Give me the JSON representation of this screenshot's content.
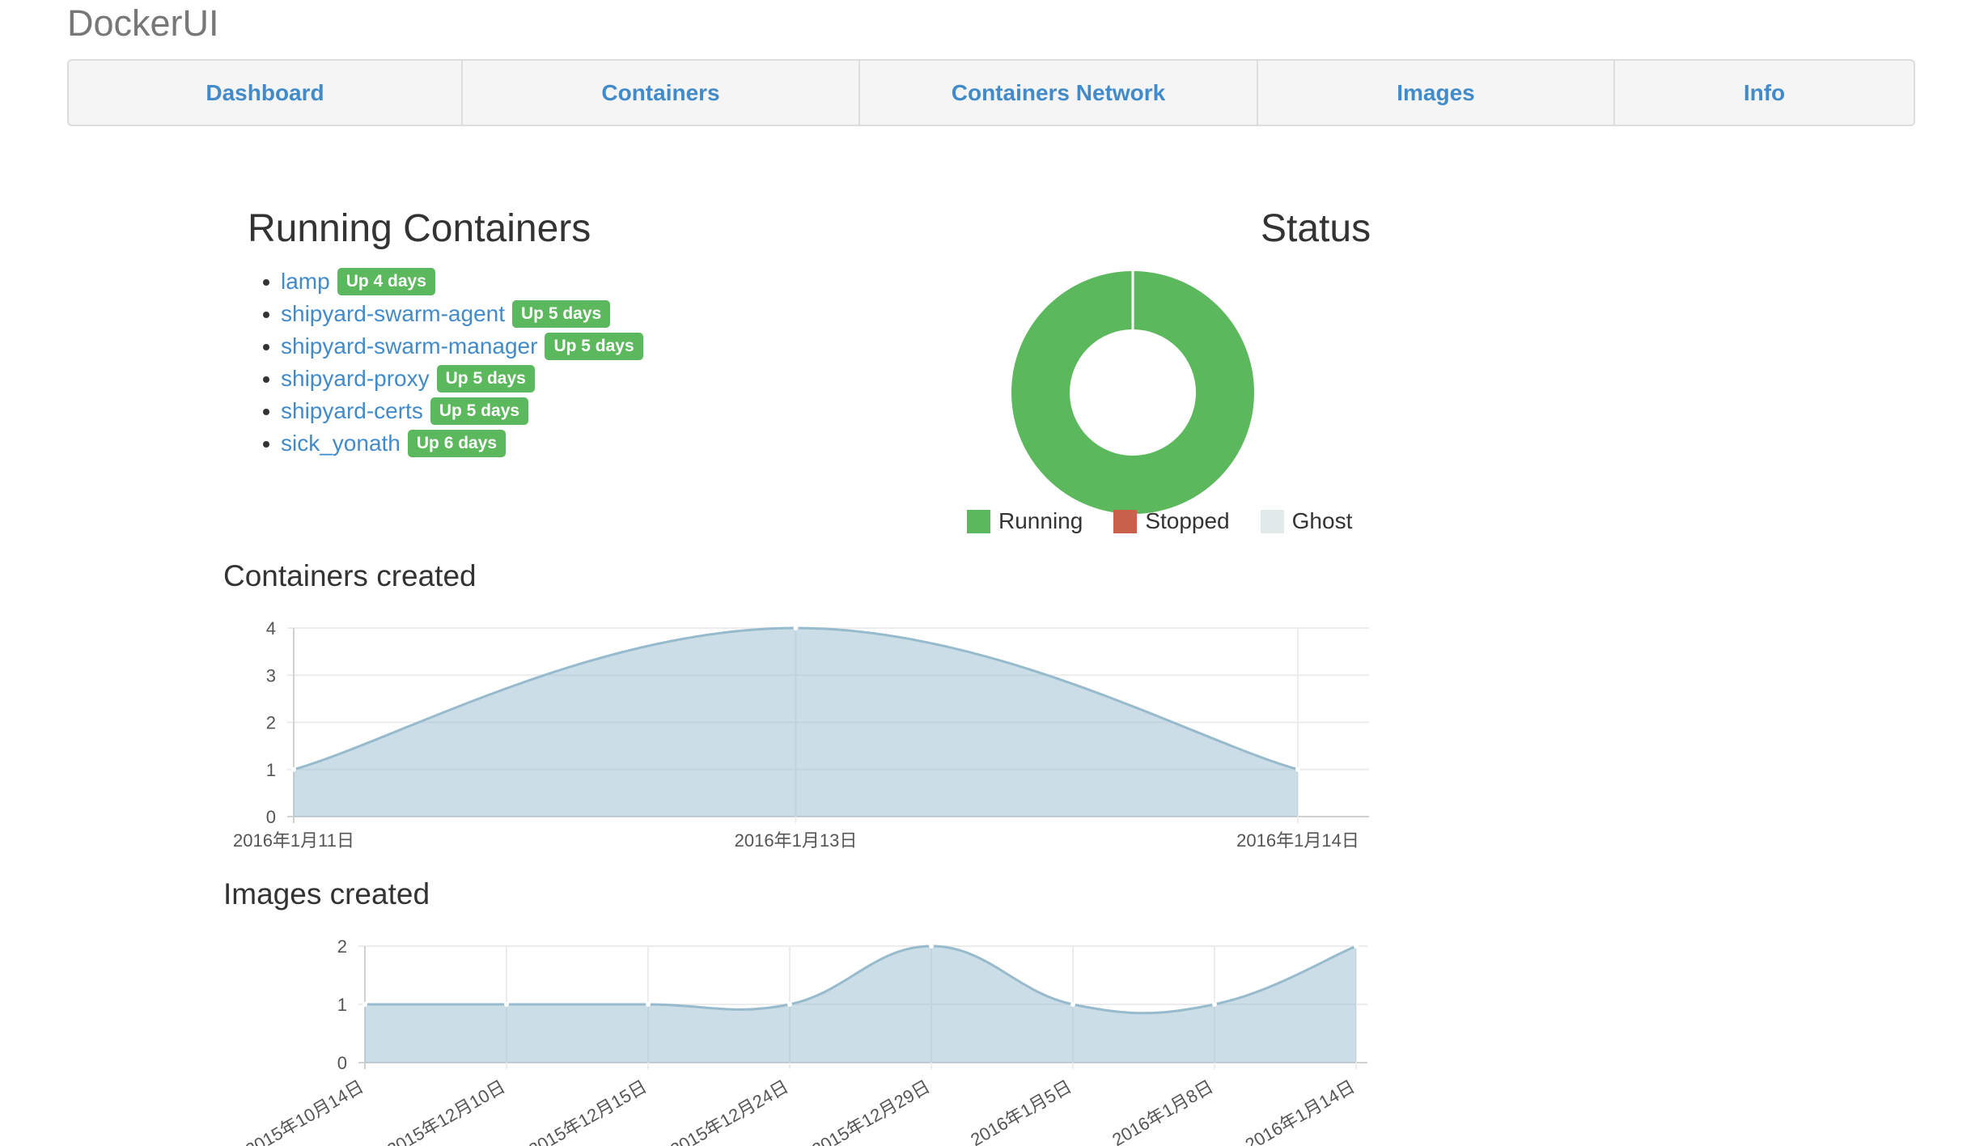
{
  "app": {
    "brand": "DockerUI"
  },
  "nav": [
    {
      "label": "Dashboard"
    },
    {
      "label": "Containers"
    },
    {
      "label": "Containers Network"
    },
    {
      "label": "Images"
    },
    {
      "label": "Info"
    }
  ],
  "running": {
    "title": "Running Containers",
    "items": [
      {
        "name": "lamp",
        "status": "Up 4 days"
      },
      {
        "name": "shipyard-swarm-agent",
        "status": "Up 5 days"
      },
      {
        "name": "shipyard-swarm-manager",
        "status": "Up 5 days"
      },
      {
        "name": "shipyard-proxy",
        "status": "Up 5 days"
      },
      {
        "name": "shipyard-certs",
        "status": "Up 5 days"
      },
      {
        "name": "sick_yonath",
        "status": "Up 6 days"
      }
    ]
  },
  "status": {
    "title": "Status",
    "legend": [
      {
        "label": "Running",
        "color": "#5cb85c"
      },
      {
        "label": "Stopped",
        "color": "#c9604c"
      },
      {
        "label": "Ghost",
        "color": "#e2eae9"
      }
    ],
    "values": {
      "running": 6,
      "stopped": 0,
      "ghost": 0
    }
  },
  "containers_created": {
    "title": "Containers created"
  },
  "images_created": {
    "title": "Images created"
  },
  "chart_data": [
    {
      "type": "pie",
      "title": "Status",
      "categories": [
        "Running",
        "Stopped",
        "Ghost"
      ],
      "values": [
        6,
        0,
        0
      ],
      "colors": [
        "#5cb85c",
        "#c9604c",
        "#e2eae9"
      ]
    },
    {
      "type": "area",
      "title": "Containers created",
      "categories": [
        "2016年1月11日",
        "2016年1月13日",
        "2016年1月14日"
      ],
      "values": [
        1,
        4,
        1
      ],
      "ylim": [
        0,
        4
      ],
      "yticks": [
        "0",
        "1",
        "2",
        "3",
        "4"
      ],
      "grid": true,
      "color": "#97bbcd"
    },
    {
      "type": "area",
      "title": "Images created",
      "categories": [
        "2015年10月14日",
        "2015年12月10日",
        "2015年12月15日",
        "2015年12月24日",
        "2015年12月29日",
        "2016年1月5日",
        "2016年1月8日",
        "2016年1月14日"
      ],
      "values": [
        1,
        1,
        1,
        1,
        2,
        1,
        1,
        2
      ],
      "ylim": [
        0,
        2
      ],
      "yticks": [
        "0",
        "1",
        "2"
      ],
      "grid": true,
      "color": "#97bbcd"
    }
  ]
}
